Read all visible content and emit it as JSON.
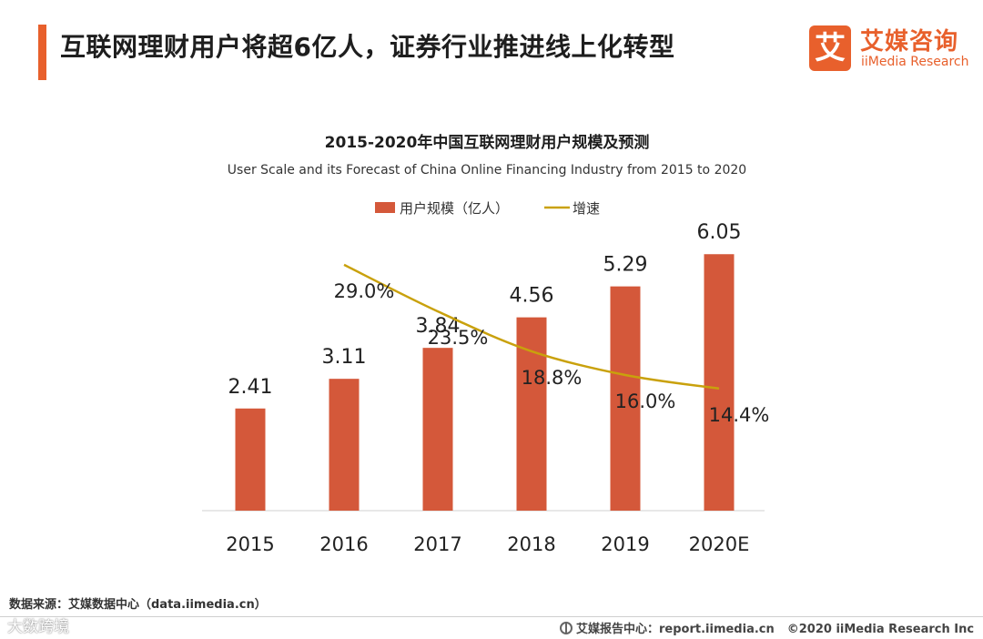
{
  "header": {
    "headline": "互联网理财用户将超6亿人，证券行业推进线上化转型"
  },
  "logo": {
    "mark": "艾",
    "name_cn": "艾媒咨询",
    "name_en": "iiMedia Research",
    "color": "#e8602c"
  },
  "chart_data": {
    "type": "bar",
    "title": "2015-2020年中国互联网理财用户规模及预测",
    "subtitle": "User Scale and its Forecast of China Online Financing Industry from 2015 to 2020",
    "categories": [
      "2015",
      "2016",
      "2017",
      "2018",
      "2019",
      "2020E"
    ],
    "series": [
      {
        "name": "用户规模（亿人）",
        "type": "bar",
        "color": "#d4583a",
        "values": [
          2.41,
          3.11,
          3.84,
          4.56,
          5.29,
          6.05
        ],
        "labels": [
          "2.41",
          "3.11",
          "3.84",
          "4.56",
          "5.29",
          "6.05"
        ]
      },
      {
        "name": "增速",
        "type": "line",
        "color": "#c9a10c",
        "values": [
          null,
          29.0,
          23.5,
          18.8,
          16.0,
          14.4
        ],
        "labels": [
          "",
          "29.0%",
          "23.5%",
          "18.8%",
          "16.0%",
          "14.4%"
        ]
      }
    ],
    "bar_ylim": [
      0,
      7
    ],
    "line_ylim": [
      0,
      35
    ],
    "legend": "top-center",
    "grid": false
  },
  "footer": {
    "source": "数据来源：艾媒数据中心（data.iimedia.cn）",
    "watermark": "大数跨境",
    "report": "艾媒报告中心：report.iimedia.cn",
    "copyright": "©2020  iiMedia Research  Inc"
  }
}
